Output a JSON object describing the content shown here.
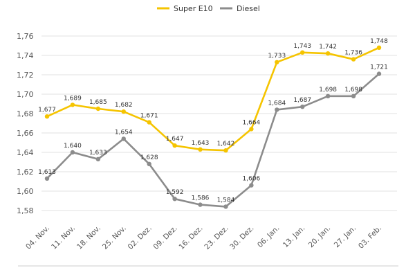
{
  "chart_data": {
    "type": "line",
    "title": "",
    "xlabel": "",
    "ylabel": "",
    "categories": [
      "04. Nov.",
      "11. Nov.",
      "18. Nov.",
      "25. Nov.",
      "02. Dez.",
      "09. Dez.",
      "16. Dez.",
      "23. Dez.",
      "30. Dez.",
      "06. Jan.",
      "13. Jan.",
      "20. Jan.",
      "27. Jan.",
      "03. Feb."
    ],
    "ylim": [
      1.57,
      1.77
    ],
    "yticks": [
      "1,58",
      "1,60",
      "1,62",
      "1,64",
      "1,66",
      "1,68",
      "1,70",
      "1,72",
      "1,74",
      "1,76"
    ],
    "ytick_values": [
      1.58,
      1.6,
      1.62,
      1.64,
      1.66,
      1.68,
      1.7,
      1.72,
      1.74,
      1.76
    ],
    "grid": true,
    "legend_position": "top-center",
    "series": [
      {
        "name": "Super E10",
        "color": "#f5c400",
        "values": [
          1.677,
          1.689,
          1.685,
          1.682,
          1.671,
          1.647,
          1.643,
          1.642,
          1.664,
          1.733,
          1.743,
          1.742,
          1.736,
          1.748
        ],
        "labels": [
          "1,677",
          "1,689",
          "1,685",
          "1,682",
          "1,671",
          "1,647",
          "1,643",
          "1,642",
          "1,664",
          "1,733",
          "1,743",
          "1,742",
          "1,736",
          "1,748"
        ]
      },
      {
        "name": "Diesel",
        "color": "#8c8c8c",
        "values": [
          1.613,
          1.64,
          1.633,
          1.654,
          1.628,
          1.592,
          1.586,
          1.584,
          1.606,
          1.684,
          1.687,
          1.698,
          1.698,
          1.721
        ],
        "labels": [
          "1,613",
          "1,640",
          "1,633",
          "1,654",
          "1,628",
          "1,592",
          "1,586",
          "1,584",
          "1,606",
          "1,684",
          "1,687",
          "1,698",
          "1,698",
          "1,721"
        ]
      }
    ]
  }
}
